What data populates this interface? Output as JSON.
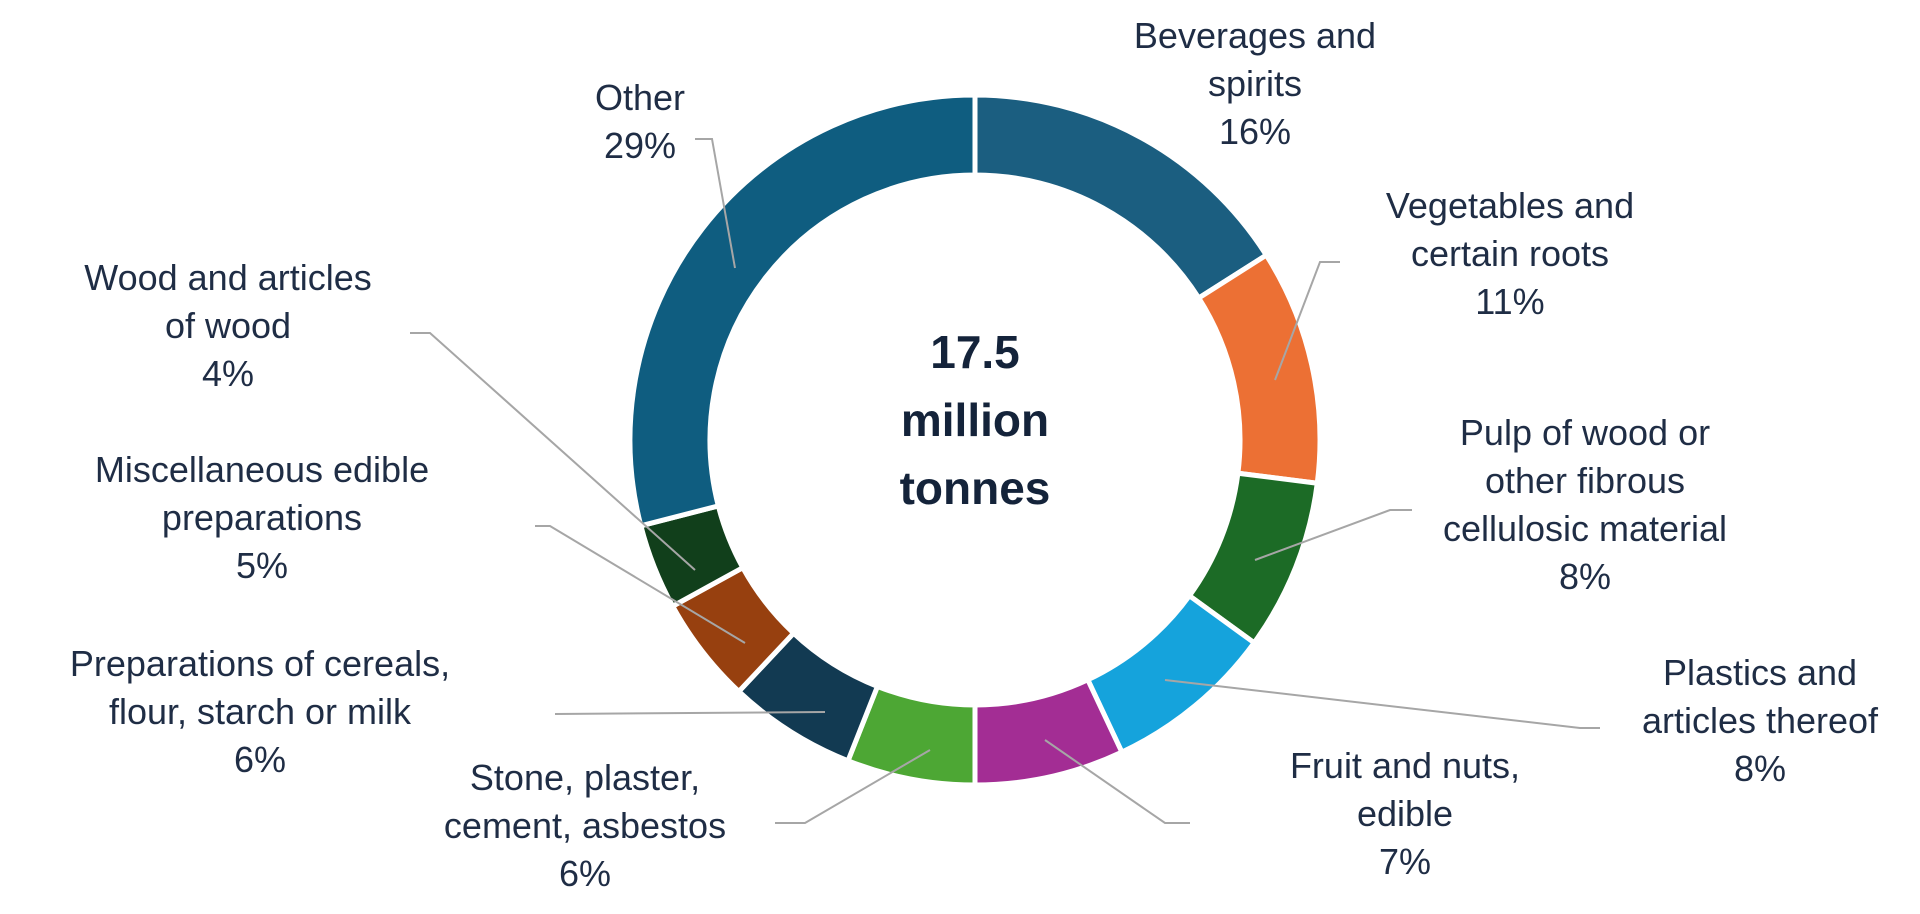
{
  "chart_data": {
    "type": "pie",
    "center_label": [
      "17.5",
      "million",
      "tonnes"
    ],
    "slices": [
      {
        "label": [
          "Beverages and",
          "spirits"
        ],
        "percent_label": "16%",
        "value": 16,
        "color": "#1b5e80"
      },
      {
        "label": [
          "Vegetables and",
          "certain roots"
        ],
        "percent_label": "11%",
        "value": 11,
        "color": "#ec7034"
      },
      {
        "label": [
          "Pulp of wood or",
          "other fibrous",
          "cellulosic material"
        ],
        "percent_label": "8%",
        "value": 8,
        "color": "#1c6b26"
      },
      {
        "label": [
          "Plastics and",
          "articles thereof"
        ],
        "percent_label": "8%",
        "value": 8,
        "color": "#15a3dc"
      },
      {
        "label": [
          "Fruit and nuts,",
          "edible"
        ],
        "percent_label": "7%",
        "value": 7,
        "color": "#a32d94"
      },
      {
        "label": [
          "Stone, plaster,",
          "cement, asbestos"
        ],
        "percent_label": "6%",
        "value": 6,
        "color": "#4da734"
      },
      {
        "label": [
          "Preparations of cereals,",
          "flour, starch or milk"
        ],
        "percent_label": "6%",
        "value": 6,
        "color": "#123a52"
      },
      {
        "label": [
          "Miscellaneous edible",
          "preparations"
        ],
        "percent_label": "5%",
        "value": 5,
        "color": "#97400f"
      },
      {
        "label": [
          "Wood and articles",
          "of wood"
        ],
        "percent_label": "4%",
        "value": 4,
        "color": "#113f1b"
      },
      {
        "label": [
          "Other"
        ],
        "percent_label": "29%",
        "value": 29,
        "color": "#0f5d80"
      }
    ]
  }
}
